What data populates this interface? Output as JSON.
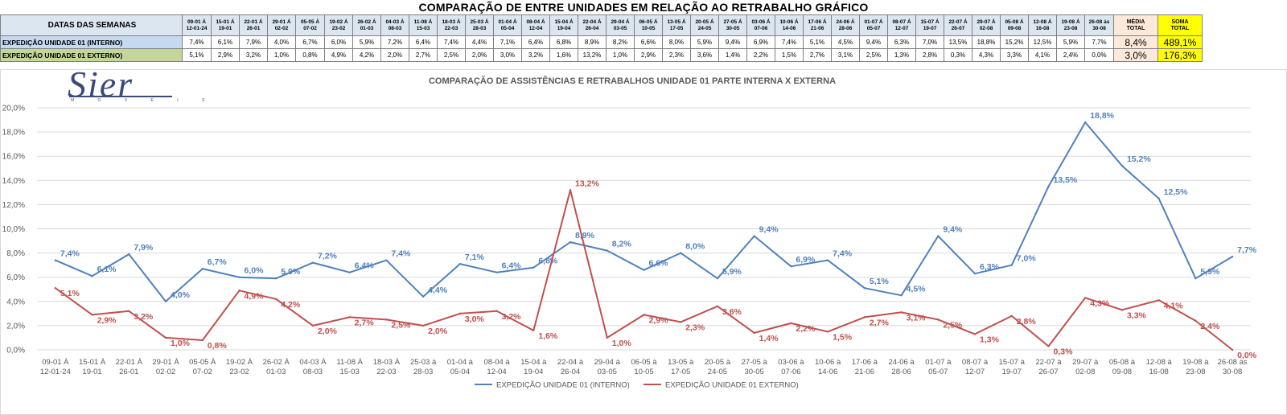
{
  "page_title": "COMPARAÇÃO DE ENTRE UNIDADES EM RELAÇÃO AO RETRABALHO GRÁFICO",
  "logo": {
    "text": "Sier",
    "subtext": "M O V E I S"
  },
  "table": {
    "header_label": "DATAS DAS SEMANAS",
    "week_labels": [
      [
        "09-01 Á",
        "12-01-24"
      ],
      [
        "15-01 Á",
        "19-01"
      ],
      [
        "22-01 Á",
        "26-01"
      ],
      [
        "29-01 Á",
        "02-02"
      ],
      [
        "05-05 Á",
        "07-02"
      ],
      [
        "19-02 Á",
        "23-02"
      ],
      [
        "26-02 Á",
        "01-03"
      ],
      [
        "04-03 Á",
        "08-03"
      ],
      [
        "11-08 Á",
        "15-03"
      ],
      [
        "18-03 Á",
        "22-03"
      ],
      [
        "25-03 Á",
        "28-03"
      ],
      [
        "01-04 Á",
        "05-04"
      ],
      [
        "08-04 Á",
        "12-04"
      ],
      [
        "15-04 Á",
        "19-04"
      ],
      [
        "22-04 Á",
        "26-04"
      ],
      [
        "29-04 Á",
        "03-05"
      ],
      [
        "06-05 Á",
        "10-05"
      ],
      [
        "13-05 Á",
        "17-05"
      ],
      [
        "20-05 Á",
        "24-05"
      ],
      [
        "27-05 Á",
        "30-05"
      ],
      [
        "03-06 Á",
        "07-06"
      ],
      [
        "10-06 Á",
        "14-06"
      ],
      [
        "17-06 Á",
        "21-06"
      ],
      [
        "24-06 Á",
        "28-06"
      ],
      [
        "01-07 Á",
        "05-07"
      ],
      [
        "08-07 Á",
        "12-07"
      ],
      [
        "15-07 Á",
        "19-07"
      ],
      [
        "22-07 Á",
        "26-07"
      ],
      [
        "29-07 Á",
        "02-08"
      ],
      [
        "05-08 Á",
        "09-08"
      ],
      [
        "12-08 Á",
        "16-08"
      ],
      [
        "19-08 Á",
        "23-08"
      ],
      [
        "26-08 ás",
        "30-08"
      ]
    ],
    "media_header": [
      "MÉDIA",
      "TOTAL"
    ],
    "soma_header": [
      "SOMA",
      "TOTAL"
    ],
    "rows": [
      {
        "label": "EXPEDIÇÃO UNIDADE 01 (INTERNO)",
        "values": [
          "7,4%",
          "6,1%",
          "7,9%",
          "4,0%",
          "6,7%",
          "6,0%",
          "5,9%",
          "7,2%",
          "6,4%",
          "7,4%",
          "4,4%",
          "7,1%",
          "6,4%",
          "6,8%",
          "8,9%",
          "8,2%",
          "6,6%",
          "8,0%",
          "5,9%",
          "9,4%",
          "6,9%",
          "7,4%",
          "5,1%",
          "4,5%",
          "9,4%",
          "6,3%",
          "7,0%",
          "13,5%",
          "18,8%",
          "15,2%",
          "12,5%",
          "5,9%",
          "7,7%"
        ],
        "media": "8,4%",
        "soma": "489,1%"
      },
      {
        "label": "EXPEDIÇÃO UNIDADE 01 EXTERNO)",
        "values": [
          "5,1%",
          "2,9%",
          "3,2%",
          "1,0%",
          "0,8%",
          "4,9%",
          "4,2%",
          "2,0%",
          "2,7%",
          "2,5%",
          "2,0%",
          "3,0%",
          "3,2%",
          "1,6%",
          "13,2%",
          "1,0%",
          "2,9%",
          "2,3%",
          "3,6%",
          "1,4%",
          "2,2%",
          "1,5%",
          "2,7%",
          "3,1%",
          "2,5%",
          "1,3%",
          "2,8%",
          "0,3%",
          "4,3%",
          "3,3%",
          "4,1%",
          "2,4%",
          "0,0%"
        ],
        "media": "3,0%",
        "soma": "176,3%"
      }
    ]
  },
  "chart_data": {
    "type": "line",
    "title": "COMPARAÇÃO DE ASSISTÊNCIAS E RETRABALHOS UNIDADE 01 PARTE INTERNA X EXTERNA",
    "x_labels": [
      [
        "09-01 À",
        "12-01-24"
      ],
      [
        "15-01 À",
        "19-01"
      ],
      [
        "22-01 À",
        "26-01"
      ],
      [
        "29-01 À",
        "02-02"
      ],
      [
        "05-05 À",
        "07-02"
      ],
      [
        "19-02 À",
        "23-02"
      ],
      [
        "26-02 À",
        "01-03"
      ],
      [
        "04-03 À",
        "08-03"
      ],
      [
        "11-08 À",
        "15-03"
      ],
      [
        "18-03 À",
        "22-03"
      ],
      [
        "25-03 à",
        "28-03"
      ],
      [
        "01-04 à",
        "05-04"
      ],
      [
        "08-04 à",
        "12-04"
      ],
      [
        "15-04 à",
        "19-04"
      ],
      [
        "22-04 à",
        "26-04"
      ],
      [
        "29-04 à",
        "03-05"
      ],
      [
        "06-05 à",
        "10-05"
      ],
      [
        "13-05 à",
        "17-05"
      ],
      [
        "20-05 à",
        "24-05"
      ],
      [
        "27-05 à",
        "30-05"
      ],
      [
        "03-06 à",
        "07-06"
      ],
      [
        "10-06 à",
        "14-06"
      ],
      [
        "17-06 à",
        "21-06"
      ],
      [
        "24-06 à",
        "28-06"
      ],
      [
        "01-07 à",
        "05-07"
      ],
      [
        "08-07 à",
        "12-07"
      ],
      [
        "15-07 à",
        "19-07"
      ],
      [
        "22-07 à",
        "26-07"
      ],
      [
        "29-07 à",
        "02-08"
      ],
      [
        "05-08 à",
        "09-08"
      ],
      [
        "12-08 à",
        "16-08"
      ],
      [
        "19-08 à",
        "23-08"
      ],
      [
        "26-08 às",
        "30-08"
      ]
    ],
    "y_ticks": [
      "0,0%",
      "2,0%",
      "4,0%",
      "6,0%",
      "8,0%",
      "10,0%",
      "12,0%",
      "14,0%",
      "16,0%",
      "18,0%",
      "20,0%"
    ],
    "ylim": [
      0,
      20
    ],
    "grid": true,
    "legend_position": "bottom",
    "series": [
      {
        "name": "EXPEDIÇÃO UNIDADE 01 (INTERNO)",
        "color": "#4f81bd",
        "values": [
          7.4,
          6.1,
          7.9,
          4.0,
          6.7,
          6.0,
          5.9,
          7.2,
          6.4,
          7.4,
          4.4,
          7.1,
          6.4,
          6.8,
          8.9,
          8.2,
          6.6,
          8.0,
          5.9,
          9.4,
          6.9,
          7.4,
          5.1,
          4.5,
          9.4,
          6.3,
          7.0,
          13.5,
          18.8,
          15.2,
          12.5,
          5.9,
          7.7
        ],
        "labels": [
          "7,4%",
          "6,1%",
          "7,9%",
          "4,0%",
          "6,7%",
          "6,0%",
          "5,9%",
          "7,2%",
          "6,4%",
          "7,4%",
          "4,4%",
          "7,1%",
          "6,4%",
          "6,8%",
          "8,9%",
          "8,2%",
          "6,6%",
          "8,0%",
          "5,9%",
          "9,4%",
          "6,9%",
          "7,4%",
          "5,1%",
          "4,5%",
          "9,4%",
          "6,3%",
          "7,0%",
          "13,5%",
          "18,8%",
          "15,2%",
          "12,5%",
          "5,9%",
          "7,7%"
        ]
      },
      {
        "name": "EXPEDIÇÃO UNIDADE 01 EXTERNO)",
        "color": "#c0504d",
        "values": [
          5.1,
          2.9,
          3.2,
          1.0,
          0.8,
          4.9,
          4.2,
          2.0,
          2.7,
          2.5,
          2.0,
          3.0,
          3.2,
          1.6,
          13.2,
          1.0,
          2.9,
          2.3,
          3.6,
          1.4,
          2.2,
          1.5,
          2.7,
          3.1,
          2.5,
          1.3,
          2.8,
          0.3,
          4.3,
          3.3,
          4.1,
          2.4,
          0.0
        ],
        "labels": [
          "5,1%",
          "2,9%",
          "3,2%",
          "1,0%",
          "0,8%",
          "4,9%",
          "4,2%",
          "2,0%",
          "2,7%",
          "2,5%",
          "2,0%",
          "3,0%",
          "3,2%",
          "1,6%",
          "13,2%",
          "1,0%",
          "2,9%",
          "2,3%",
          "3,6%",
          "1,4%",
          "2,2%",
          "1,5%",
          "2,7%",
          "3,1%",
          "2,5%",
          "1,3%",
          "2,8%",
          "0,3%",
          "4,3%",
          "3,3%",
          "4,1%",
          "2,4%",
          "0,0%"
        ]
      }
    ],
    "legend": [
      "EXPEDIÇÃO UNIDADE 01 (INTERNO)",
      "EXPEDIÇÃO UNIDADE 01 EXTERNO)"
    ]
  }
}
